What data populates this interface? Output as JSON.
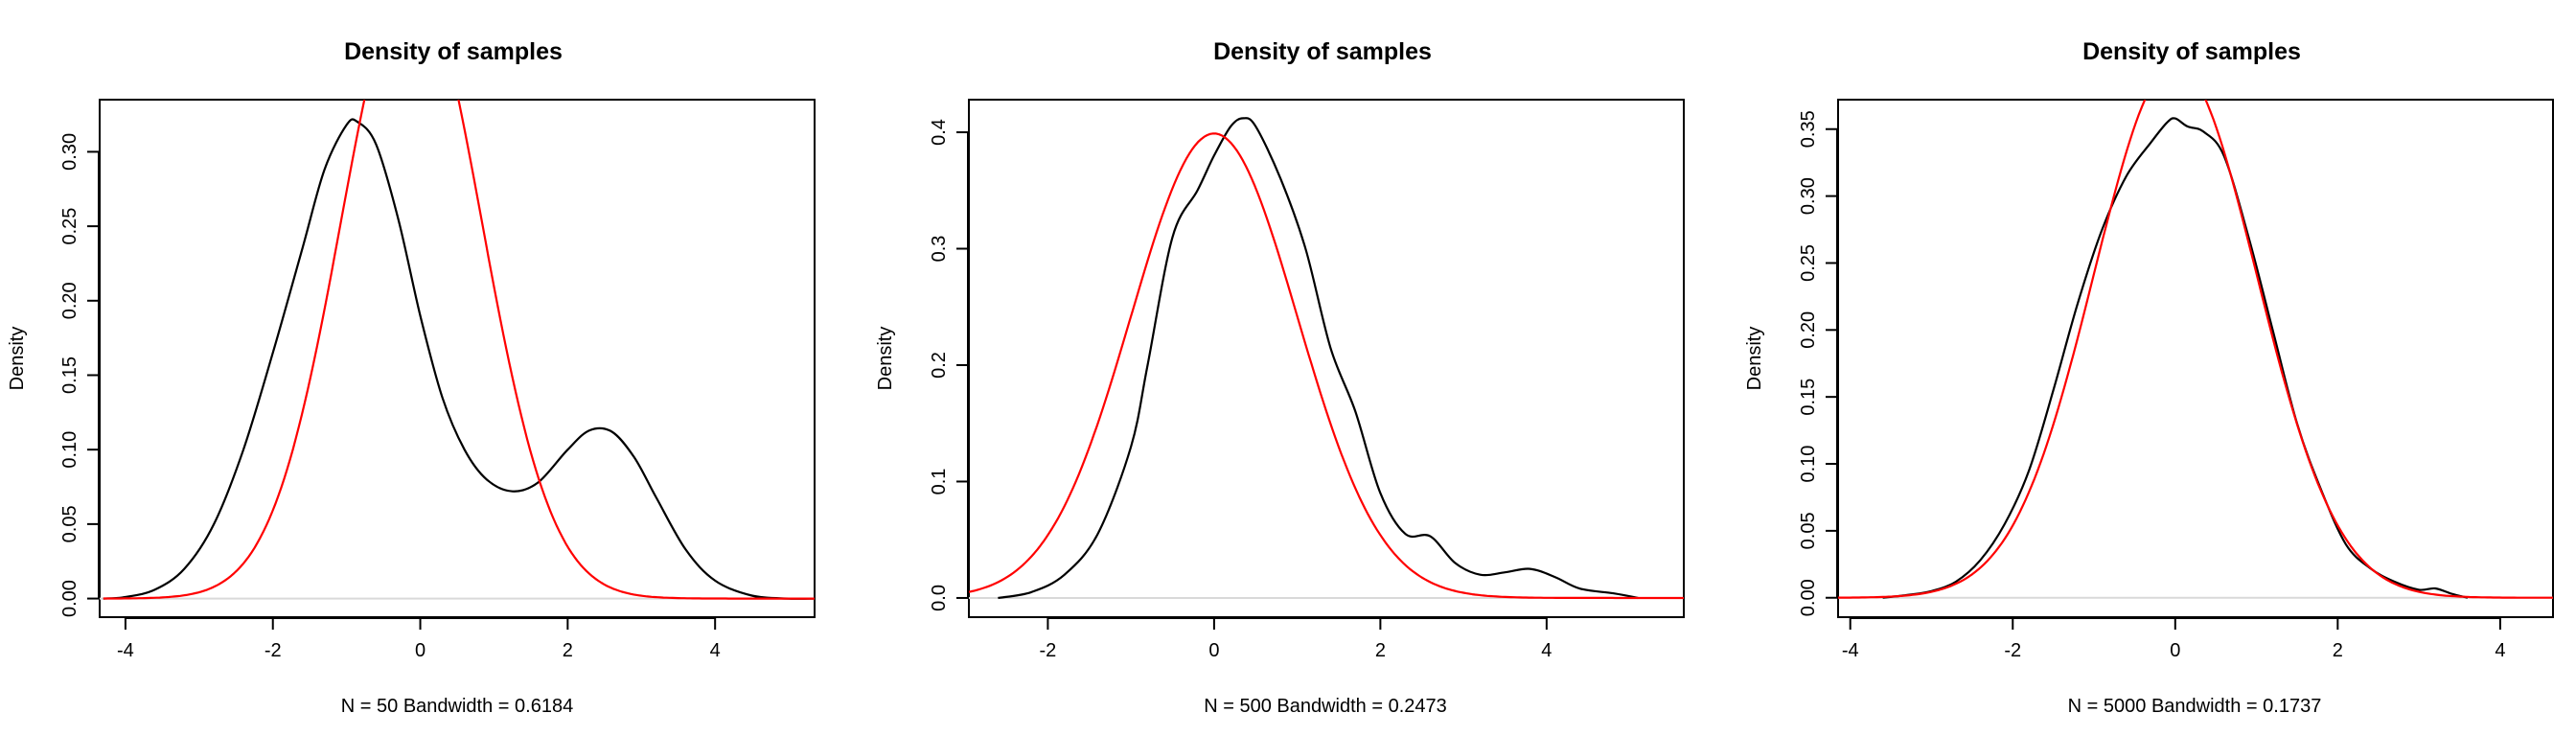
{
  "colors": {
    "density": "#000000",
    "normal": "#ff0000",
    "baseline": "#d9d9d9"
  },
  "chart_data": [
    {
      "type": "line",
      "title": "Density of samples",
      "xlabel": "N = 50   Bandwidth = 0.6184",
      "ylabel": "Density",
      "xlim": [
        -4.35,
        5.35
      ],
      "ylim": [
        -0.0125,
        0.335
      ],
      "xticks": [
        -4,
        -2,
        0,
        2,
        4
      ],
      "yticks": [
        0.0,
        0.05,
        0.1,
        0.15,
        0.2,
        0.25,
        0.3
      ],
      "ytick_labels": [
        "0.00",
        "0.05",
        "0.10",
        "0.15",
        "0.20",
        "0.25",
        "0.30"
      ],
      "grid": false,
      "series": [
        {
          "role": "kernel-density",
          "color": "#000000",
          "x": [
            -4.3,
            -4.0,
            -3.6,
            -3.2,
            -2.8,
            -2.4,
            -2.0,
            -1.6,
            -1.3,
            -1.0,
            -0.85,
            -0.6,
            -0.3,
            0.0,
            0.3,
            0.6,
            0.9,
            1.25,
            1.6,
            2.0,
            2.3,
            2.6,
            2.9,
            3.2,
            3.6,
            4.0,
            4.5,
            5.0,
            5.35
          ],
          "y": [
            0.0,
            0.001,
            0.006,
            0.02,
            0.05,
            0.1,
            0.165,
            0.235,
            0.288,
            0.318,
            0.32,
            0.305,
            0.255,
            0.19,
            0.135,
            0.1,
            0.08,
            0.072,
            0.078,
            0.1,
            0.113,
            0.112,
            0.095,
            0.068,
            0.033,
            0.012,
            0.002,
            0.0,
            0.0
          ]
        },
        {
          "role": "normal-density",
          "color": "#ff0000",
          "distribution": "normal",
          "mean": -0.12,
          "sd": 0.95,
          "range": [
            -4.3,
            5.35
          ]
        }
      ]
    },
    {
      "type": "line",
      "title": "Density of samples",
      "xlabel": "N = 500   Bandwidth = 0.2473",
      "ylabel": "Density",
      "xlim": [
        -2.95,
        5.65
      ],
      "ylim": [
        -0.0165,
        0.428
      ],
      "xticks": [
        -2,
        0,
        2,
        4
      ],
      "yticks": [
        0.0,
        0.1,
        0.2,
        0.3,
        0.4
      ],
      "ytick_labels": [
        "0.0",
        "0.1",
        "0.2",
        "0.3",
        "0.4"
      ],
      "grid": false,
      "series": [
        {
          "role": "kernel-density",
          "color": "#000000",
          "x": [
            -2.6,
            -2.2,
            -1.8,
            -1.4,
            -1.0,
            -0.8,
            -0.5,
            -0.2,
            0.0,
            0.2,
            0.35,
            0.5,
            0.8,
            1.1,
            1.4,
            1.7,
            2.0,
            2.3,
            2.6,
            2.9,
            3.2,
            3.5,
            3.8,
            4.1,
            4.4,
            4.8,
            5.1
          ],
          "y": [
            0.0,
            0.005,
            0.02,
            0.055,
            0.13,
            0.2,
            0.31,
            0.35,
            0.38,
            0.405,
            0.412,
            0.405,
            0.36,
            0.3,
            0.215,
            0.16,
            0.09,
            0.055,
            0.053,
            0.03,
            0.02,
            0.022,
            0.025,
            0.018,
            0.008,
            0.004,
            0.0
          ]
        },
        {
          "role": "normal-density",
          "color": "#ff0000",
          "distribution": "normal",
          "mean": 0.0,
          "sd": 1.0,
          "range": [
            -2.95,
            5.65
          ]
        }
      ]
    },
    {
      "type": "line",
      "title": "Density of samples",
      "xlabel": "N = 5000   Bandwidth = 0.1737",
      "ylabel": "Density",
      "xlim": [
        -4.15,
        4.65
      ],
      "ylim": [
        -0.0145,
        0.372
      ],
      "xticks": [
        -4,
        -2,
        0,
        2,
        4
      ],
      "yticks": [
        0.0,
        0.05,
        0.1,
        0.15,
        0.2,
        0.25,
        0.3,
        0.35
      ],
      "ytick_labels": [
        "0.00",
        "0.05",
        "0.10",
        "0.15",
        "0.20",
        "0.25",
        "0.30",
        "0.35"
      ],
      "grid": false,
      "series": [
        {
          "role": "kernel-density",
          "color": "#000000",
          "x": [
            -3.6,
            -3.3,
            -3.0,
            -2.7,
            -2.4,
            -2.1,
            -1.8,
            -1.5,
            -1.2,
            -0.9,
            -0.6,
            -0.3,
            -0.1,
            0.0,
            0.15,
            0.35,
            0.6,
            0.9,
            1.2,
            1.5,
            1.8,
            2.1,
            2.4,
            2.7,
            3.0,
            3.2,
            3.4,
            3.6
          ],
          "y": [
            0.0,
            0.002,
            0.005,
            0.012,
            0.028,
            0.055,
            0.095,
            0.155,
            0.22,
            0.275,
            0.315,
            0.34,
            0.355,
            0.358,
            0.352,
            0.348,
            0.33,
            0.27,
            0.2,
            0.13,
            0.08,
            0.04,
            0.022,
            0.012,
            0.006,
            0.007,
            0.003,
            0.0
          ]
        },
        {
          "role": "normal-density",
          "color": "#ff0000",
          "distribution": "normal",
          "mean": 0.0,
          "sd": 1.0,
          "range": [
            -4.15,
            4.65
          ]
        }
      ]
    }
  ]
}
